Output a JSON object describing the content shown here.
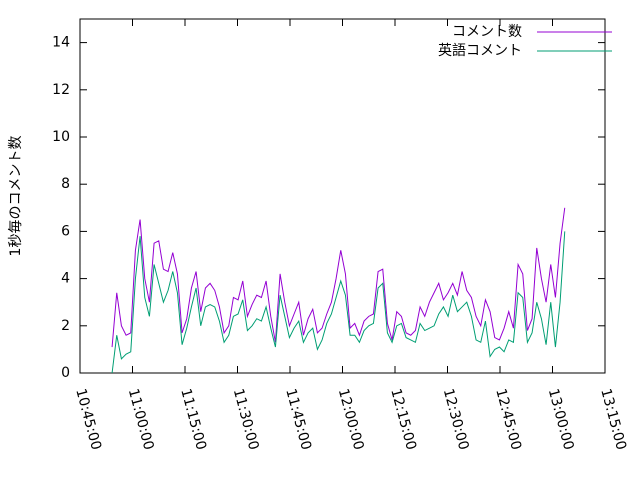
{
  "chart_data": {
    "type": "line",
    "y_label": "1秒毎のコメント数",
    "x": [
      "10:54:10",
      "10:55:30",
      "10:56:50",
      "10:58:10",
      "10:59:30",
      "11:00:50",
      "11:02:10",
      "11:03:30",
      "11:04:50",
      "11:06:10",
      "11:07:30",
      "11:08:50",
      "11:10:10",
      "11:11:30",
      "11:12:50",
      "11:14:10",
      "11:15:30",
      "11:16:50",
      "11:18:10",
      "11:19:30",
      "11:20:50",
      "11:22:10",
      "11:23:30",
      "11:24:50",
      "11:26:10",
      "11:27:30",
      "11:28:50",
      "11:30:10",
      "11:31:30",
      "11:32:50",
      "11:34:10",
      "11:35:30",
      "11:36:50",
      "11:38:10",
      "11:39:30",
      "11:40:50",
      "11:42:10",
      "11:43:30",
      "11:44:50",
      "11:46:10",
      "11:47:30",
      "11:48:50",
      "11:50:10",
      "11:51:30",
      "11:52:50",
      "11:54:10",
      "11:55:30",
      "11:56:50",
      "11:58:10",
      "11:59:30",
      "12:00:50",
      "12:02:10",
      "12:03:30",
      "12:04:50",
      "12:06:10",
      "12:07:30",
      "12:08:50",
      "12:10:10",
      "12:11:30",
      "12:12:50",
      "12:14:10",
      "12:15:30",
      "12:16:50",
      "12:18:10",
      "12:19:30",
      "12:20:50",
      "12:22:10",
      "12:23:30",
      "12:24:50",
      "12:26:10",
      "12:27:30",
      "12:28:50",
      "12:30:10",
      "12:31:30",
      "12:32:50",
      "12:34:10",
      "12:35:30",
      "12:36:50",
      "12:38:10",
      "12:39:30",
      "12:40:50",
      "12:42:10",
      "12:43:30",
      "12:44:50",
      "12:46:10",
      "12:47:30",
      "12:48:50",
      "12:50:10",
      "12:51:30",
      "12:52:50",
      "12:54:10",
      "12:55:30",
      "12:56:50",
      "12:58:10",
      "12:59:30",
      "13:00:50",
      "13:02:10",
      "13:03:30"
    ],
    "series": [
      {
        "name": "コメント数",
        "color": "#9400d3",
        "values": [
          1.1,
          3.4,
          2.0,
          1.6,
          1.7,
          5.2,
          6.5,
          4.0,
          3.0,
          5.5,
          5.6,
          4.4,
          4.3,
          5.1,
          4.2,
          1.7,
          2.3,
          3.6,
          4.3,
          2.6,
          3.6,
          3.8,
          3.5,
          2.8,
          1.7,
          2.0,
          3.2,
          3.1,
          3.9,
          2.4,
          2.9,
          3.3,
          3.2,
          3.9,
          2.4,
          1.3,
          4.2,
          3.0,
          2.0,
          2.5,
          3.0,
          1.6,
          2.3,
          2.7,
          1.7,
          1.9,
          2.5,
          3.0,
          4.0,
          5.2,
          4.2,
          1.9,
          2.1,
          1.6,
          2.2,
          2.4,
          2.5,
          4.3,
          4.4,
          2.1,
          1.4,
          2.6,
          2.4,
          1.7,
          1.6,
          1.8,
          2.8,
          2.4,
          3.0,
          3.4,
          3.8,
          3.1,
          3.4,
          3.8,
          3.3,
          4.3,
          3.5,
          3.2,
          2.4,
          2.0,
          3.1,
          2.6,
          1.5,
          1.4,
          1.9,
          2.6,
          1.9,
          4.6,
          4.2,
          1.8,
          2.3,
          5.3,
          4.0,
          3.0,
          4.6,
          3.2,
          5.5,
          7.0
        ]
      },
      {
        "name": "英語コメント",
        "color": "#009e73",
        "values": [
          0,
          1.6,
          0.6,
          0.8,
          0.9,
          4.0,
          5.8,
          3.2,
          2.4,
          4.6,
          3.8,
          3.0,
          3.5,
          4.3,
          3.4,
          1.2,
          1.9,
          2.8,
          3.6,
          2.0,
          2.8,
          2.9,
          2.8,
          2.2,
          1.3,
          1.6,
          2.4,
          2.5,
          3.1,
          1.8,
          2.0,
          2.3,
          2.2,
          2.8,
          1.9,
          1.1,
          3.3,
          2.4,
          1.5,
          1.9,
          2.2,
          1.3,
          1.7,
          1.9,
          1.0,
          1.4,
          2.1,
          2.5,
          3.2,
          3.9,
          3.3,
          1.6,
          1.6,
          1.3,
          1.8,
          2.0,
          2.1,
          3.6,
          3.8,
          1.7,
          1.3,
          2.0,
          2.1,
          1.5,
          1.4,
          1.3,
          2.1,
          1.8,
          1.9,
          2.0,
          2.5,
          2.8,
          2.4,
          3.3,
          2.6,
          2.8,
          3.0,
          2.4,
          1.4,
          1.3,
          2.2,
          0.7,
          1.0,
          1.1,
          0.9,
          1.4,
          1.3,
          3.4,
          3.2,
          1.3,
          1.7,
          3.0,
          2.3,
          1.2,
          3.0,
          1.1,
          3.0,
          6.0
        ]
      }
    ],
    "xlim": [
      "10:45:00",
      "13:15:00"
    ],
    "xticks": [
      "10:45:00",
      "11:00:00",
      "11:15:00",
      "11:30:00",
      "11:45:00",
      "12:00:00",
      "12:15:00",
      "12:30:00",
      "12:45:00",
      "13:00:00",
      "13:15:00"
    ],
    "ylim": [
      0,
      15
    ],
    "yticks": [
      0,
      2,
      4,
      6,
      8,
      10,
      12,
      14
    ],
    "legend": "top-right"
  }
}
